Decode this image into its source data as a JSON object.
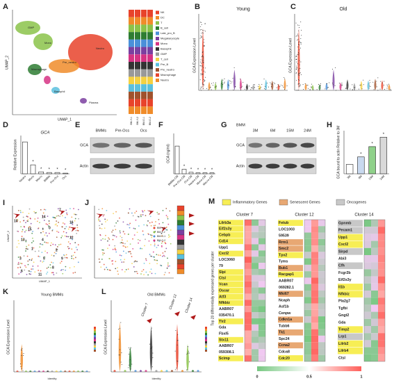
{
  "A": {
    "letter": "A",
    "xlabel": "UMAP_1",
    "ylabel": "UMAP_2",
    "clusters": [
      "Neutro",
      "Pre_neutro",
      "Mono",
      "Macrophage",
      "Basophil",
      "Plasma",
      "GMP"
    ],
    "legend": [
      "NK",
      "DC",
      "T",
      "B_cell",
      "Late_pro_B",
      "Megakaryocyte",
      "Mono",
      "Basophil",
      "GMP",
      "T_cell",
      "Pre_B",
      "Pre_neutro",
      "Macrophage",
      "Neutro"
    ],
    "samples": [
      "BM-Y-1",
      "BM-Y-2",
      "BM-O-1",
      "BM-O-2"
    ]
  },
  "B": {
    "letter": "B",
    "title": "Young",
    "ylabel": "GCA Expression Level"
  },
  "C": {
    "letter": "C",
    "title": "Old",
    "ylabel": "GCA Expression Level"
  },
  "D": {
    "letter": "D",
    "chart_data": {
      "type": "bar",
      "title": "GCA",
      "ylabel": "Relative Expression",
      "categories": [
        "Neutro",
        "Mono",
        "Macro",
        "BMMs",
        "Pre-Ocs",
        "Ocs"
      ],
      "values": [
        5.0,
        1.4,
        0.3,
        0.2,
        0.2,
        0.1
      ],
      "annotations": [
        null,
        "*",
        "*",
        "*",
        "*",
        "*"
      ],
      "color": "#ffffff",
      "ylim": [
        0,
        6
      ]
    }
  },
  "E": {
    "letter": "E",
    "columns": [
      "BMMs",
      "Pre-Ocs",
      "Ocs"
    ],
    "rows": [
      "GCA",
      "Actin"
    ]
  },
  "F": {
    "letter": "F",
    "chart_data": {
      "type": "bar",
      "ylabel": "GCA (ng/ml)",
      "categories": [
        "BMMs-CM",
        "Pre-Ocs-CM",
        "Ocs-CM",
        "Neutro-CM",
        "Mono-CM",
        "Macro-CM"
      ],
      "values": [
        5.5,
        0.9,
        0.3,
        0.2,
        0.2,
        0.2
      ],
      "annotations": [
        null,
        "*",
        "*",
        "*",
        "*",
        "*"
      ],
      "color": "#ffffff",
      "ylim": [
        0,
        8
      ]
    }
  },
  "G": {
    "letter": "G",
    "label": "BMM",
    "columns": [
      "3M",
      "6M",
      "15M",
      "24M"
    ],
    "rows": [
      "GCA",
      "Actin"
    ]
  },
  "H": {
    "letter": "H",
    "chart_data": {
      "type": "bar",
      "ylabel": "GCA bound to actin Relative to 3M",
      "categories": [
        "3M",
        "6M",
        "15M",
        "24M"
      ],
      "values": [
        1.0,
        1.8,
        2.9,
        3.9
      ],
      "annotations": [
        null,
        "*",
        "*",
        "*"
      ],
      "colors": [
        "#ffffff",
        "#c9d9ef",
        "#8fd18a",
        "#d9d9d9"
      ],
      "ylim": [
        0,
        4.6
      ]
    }
  },
  "I": {
    "letter": "I",
    "xlabel": "UMAP_1",
    "ylabel": "UMAP_2",
    "clusters": [
      "7",
      "14",
      "10",
      "13",
      "12",
      "4",
      "1",
      "2",
      "3",
      "5",
      "9",
      "6",
      "8",
      "11",
      "15",
      "16",
      "0"
    ]
  },
  "J": {
    "letter": "J",
    "legend": [
      "BM-Y-1",
      "BM-Y-2",
      "BM-O-1",
      "BM-O-2"
    ]
  },
  "K": {
    "letter": "K",
    "title": "Young BMMs",
    "ylabel": "GCA Expression Level",
    "xlabel": "Identity"
  },
  "L": {
    "letter": "L",
    "title": "Old BMMs",
    "ylabel": "GCA Expression Level",
    "xlabel": "Identity",
    "callouts": [
      "Cluster 7",
      "Cluster 12",
      "Cluster 14"
    ]
  },
  "M": {
    "letter": "M",
    "ylabel": "Top 20 differentially expressed genes per cluster",
    "legend": [
      {
        "name": "Inflammatory Genes",
        "color": "#f7ee55"
      },
      {
        "name": "Senescent Genes",
        "color": "#e8a873"
      },
      {
        "name": "Oncogenes",
        "color": "#c8c8c8"
      }
    ],
    "colorbar": [
      "0",
      "0.5",
      "1"
    ],
    "clusters": [
      {
        "name": "Cluster 7",
        "genes": [
          {
            "name": "Lilrb3a",
            "color": "#f7ee55"
          },
          {
            "name": "Eif2s3y",
            "color": "#f7ee55"
          },
          {
            "name": "Cebpb",
            "color": "#f7ee55"
          },
          {
            "name": "Cd14",
            "color": "#f7ee55"
          },
          {
            "name": "Upp1"
          },
          {
            "name": "Cxcl2",
            "color": "#f7ee55"
          },
          {
            "name": "LOC3060"
          },
          {
            "name": "79"
          },
          {
            "name": "Slpi",
            "color": "#f7ee55"
          },
          {
            "name": "Ctsl",
            "color": "#f7ee55"
          },
          {
            "name": "Vcan",
            "color": "#f7ee55"
          },
          {
            "name": "Oscar",
            "color": "#f7ee55"
          },
          {
            "name": "Atf3",
            "color": "#f7ee55"
          },
          {
            "name": "Nfkbiz",
            "color": "#f7ee55"
          },
          {
            "name": "AABR07"
          },
          {
            "name": "035470.1"
          },
          {
            "name": "Tlr2",
            "color": "#f7ee55"
          },
          {
            "name": "Gda"
          },
          {
            "name": "Fbxl5"
          },
          {
            "name": "Stx11",
            "color": "#f7ee55"
          },
          {
            "name": "AABR07"
          },
          {
            "name": "059308.1"
          },
          {
            "name": "Scimp",
            "color": "#f7ee55"
          }
        ]
      },
      {
        "name": "Cluster 12",
        "genes": [
          {
            "name": "Fetub",
            "color": "#f7ee55"
          },
          {
            "name": "LOC1003"
          },
          {
            "name": "59539"
          },
          {
            "name": "Rrm1",
            "color": "#e8a873"
          },
          {
            "name": "Smc2",
            "color": "#e8a873"
          },
          {
            "name": "Tpx2",
            "color": "#f7ee55"
          },
          {
            "name": "Tyms"
          },
          {
            "name": "Bub1",
            "color": "#e8a873"
          },
          {
            "name": "Racgap1",
            "color": "#f7ee55"
          },
          {
            "name": "AABR07"
          },
          {
            "name": "069282.1"
          },
          {
            "name": "Mki67",
            "color": "#e8a873"
          },
          {
            "name": "Ncaph"
          },
          {
            "name": "Asf1b"
          },
          {
            "name": "Cenpw"
          },
          {
            "name": "Cdkn1a",
            "color": "#e8a873"
          },
          {
            "name": "Tubb6"
          },
          {
            "name": "Tk1",
            "color": "#e8a873"
          },
          {
            "name": "Spc24"
          },
          {
            "name": "Ccna2",
            "color": "#e8a873"
          },
          {
            "name": "Cdca8"
          },
          {
            "name": "Cdc20",
            "color": "#f7ee55"
          }
        ]
      },
      {
        "name": "Cluster 14",
        "genes": [
          {
            "name": "Gpnmb",
            "color": "#c8c8c8"
          },
          {
            "name": "Pecam1",
            "color": "#c8c8c8"
          },
          {
            "name": "Upp1",
            "color": "#f7ee55"
          },
          {
            "name": "Cxcl2",
            "color": "#f7ee55"
          },
          {
            "name": "Sirpd",
            "color": "#c8c8c8"
          },
          {
            "name": "Abi3"
          },
          {
            "name": "Cfh",
            "color": "#c8c8c8"
          },
          {
            "name": "Fcgr2b"
          },
          {
            "name": "Eif2s3y"
          },
          {
            "name": "Il1b",
            "color": "#f7ee55"
          },
          {
            "name": "Nfkbiz",
            "color": "#f7ee55"
          },
          {
            "name": "Pla2g7"
          },
          {
            "name": "Tgfbi"
          },
          {
            "name": "Gngt2"
          },
          {
            "name": "Gda"
          },
          {
            "name": "Timp2",
            "color": "#f7ee55"
          },
          {
            "name": "Lrp1",
            "color": "#c8c8c8"
          },
          {
            "name": "Lilrb2",
            "color": "#f7ee55"
          },
          {
            "name": "Lilrb4",
            "color": "#f7ee55"
          },
          {
            "name": "Ctsl"
          }
        ]
      }
    ]
  }
}
